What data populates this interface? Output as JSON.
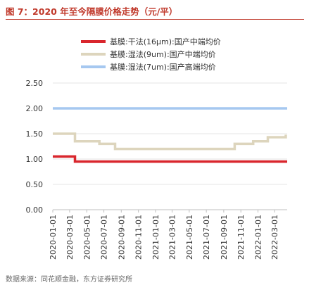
{
  "header": {
    "title": "图 7：2020 年至今隔膜价格走势（元/平）"
  },
  "footer": {
    "source": "数据来源：同花顺金融，东方证券研究所"
  },
  "chart_data": {
    "type": "line",
    "title": "",
    "xlabel": "",
    "ylabel": "",
    "ylim": [
      0,
      2.5
    ],
    "yticks": [
      "0.00",
      "0.50",
      "1.00",
      "1.50",
      "2.00",
      "2.50"
    ],
    "grid": "horizontal",
    "legend_position": "top",
    "x_tick_labels": [
      "2020-01-01",
      "2020-03-01",
      "2020-05-01",
      "2020-07-01",
      "2020-09-01",
      "2020-11-01",
      "2021-01-01",
      "2021-03-01",
      "2021-05-01",
      "2021-07-01",
      "2021-09-01",
      "2021-11-01",
      "2022-01-01",
      "2022-03-01"
    ],
    "x_range": [
      "2020-01-01",
      "2022-04-15"
    ],
    "series": [
      {
        "name": "基膜:干法(16μm):国产中端均价",
        "color": "#d9262d",
        "step": true,
        "x": [
          "2020-01-01",
          "2020-03-20",
          "2022-04-15"
        ],
        "y": [
          1.05,
          0.95,
          0.95
        ]
      },
      {
        "name": "基膜:湿法(9um):国产中端均价",
        "color": "#ddd5bd",
        "step": true,
        "x": [
          "2020-01-01",
          "2020-03-20",
          "2020-06-15",
          "2020-08-10",
          "2021-08-20",
          "2021-10-10",
          "2021-12-15",
          "2022-02-05",
          "2022-04-10"
        ],
        "y": [
          1.5,
          1.35,
          1.3,
          1.2,
          1.2,
          1.3,
          1.35,
          1.43,
          1.48
        ]
      },
      {
        "name": "基膜:湿法(7um):国产高端均价",
        "color": "#a6c8f0",
        "step": true,
        "x": [
          "2020-01-01",
          "2022-04-15"
        ],
        "y": [
          2.0,
          2.0
        ]
      }
    ]
  }
}
